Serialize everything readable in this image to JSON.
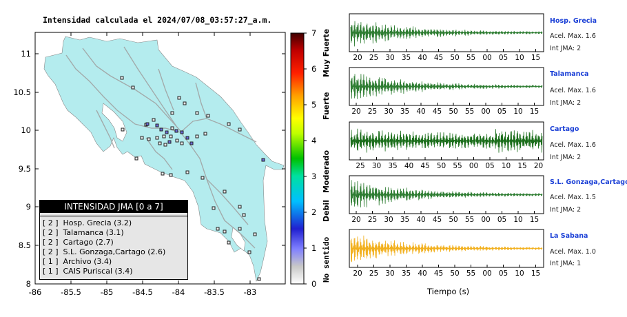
{
  "map": {
    "title": "Intensidad calculada el 2024/07/08_03:57:27_a.m.",
    "x_ticks": [
      "-86",
      "-85.5",
      "-85",
      "-84.5",
      "-84",
      "-83.5",
      "-83"
    ],
    "y_ticks": [
      "11",
      "10.5",
      "10",
      "9.5",
      "9",
      "8.5",
      "8"
    ],
    "sea_color": "#ffffff",
    "land_color": "#b4ecee"
  },
  "colorbar": {
    "ticks": [
      "0",
      "1",
      "2",
      "3",
      "4",
      "5",
      "6",
      "7"
    ],
    "labels": [
      "No sentido",
      "Debil",
      "Moderado",
      "Fuerte",
      "Muy Fuerte"
    ]
  },
  "legend": {
    "title": "INTENSIDAD JMA [0 a 7]",
    "items": [
      {
        "int": "[ 2 ]",
        "label": "Hosp. Grecia (3.2)"
      },
      {
        "int": "[ 2 ]",
        "label": "Talamanca (3.1)"
      },
      {
        "int": "[ 2 ]",
        "label": "Cartago (2.7)"
      },
      {
        "int": "[ 2 ]",
        "label": "S.L. Gonzaga,Cartago (2.6)"
      },
      {
        "int": "[ 1 ]",
        "label": "Archivo (3.4)"
      },
      {
        "int": "[ 1 ]",
        "label": "CAIS Puriscal (3.4)"
      }
    ]
  },
  "stations": [
    {
      "name": "Hosp. Grecia",
      "acc": "Acel. Max. 1.6",
      "jma": "Int JMA: 2",
      "color": "#2e7d32",
      "ticks": [
        "20",
        "25",
        "30",
        "35",
        "40",
        "45",
        "50",
        "55",
        "00",
        "05",
        "10",
        "15"
      ]
    },
    {
      "name": "Talamanca",
      "acc": "Acel. Max. 1.6",
      "jma": "Int JMA: 2",
      "color": "#2e7d32",
      "ticks": [
        "20",
        "25",
        "30",
        "35",
        "40",
        "45",
        "50",
        "55",
        "00",
        "05",
        "10",
        "15"
      ]
    },
    {
      "name": "Cartago",
      "acc": "Acel. Max. 1.6",
      "jma": "Int JMA: 2",
      "color": "#1b6e1b",
      "ticks": [
        "25",
        "30",
        "35",
        "40",
        "45",
        "50",
        "55",
        "00",
        "05",
        "10",
        "15",
        "20"
      ]
    },
    {
      "name": "S.L. Gonzaga,Cartago",
      "acc": "Acel. Max. 1.5",
      "jma": "Int JMA: 2",
      "color": "#2e7d32",
      "ticks": [
        "20",
        "25",
        "30",
        "35",
        "40",
        "45",
        "50",
        "55",
        "00",
        "05",
        "10",
        "15"
      ]
    },
    {
      "name": "La Sabana",
      "acc": "Acel. Max. 1.0",
      "jma": "Int JMA: 1",
      "color": "#f2b01e",
      "ticks": [
        "20",
        "25",
        "30",
        "35",
        "40",
        "45",
        "50",
        "55",
        "00",
        "05",
        "10",
        "15"
      ]
    }
  ],
  "time_axis_label": "Tiempo (s)"
}
